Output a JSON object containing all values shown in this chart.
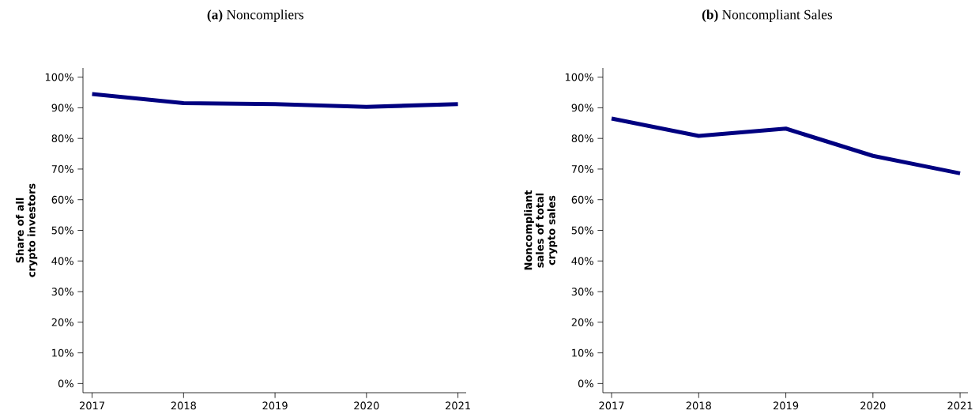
{
  "chart_data": [
    {
      "type": "line",
      "title": "**(a)** Noncompliers",
      "ylabel": "Share of all crypto investors",
      "x": [
        2017,
        2018,
        2019,
        2020,
        2021
      ],
      "xlim": [
        2016.9,
        2021.09
      ],
      "xticks": [
        2017,
        2018,
        2019,
        2020,
        2021
      ],
      "ylim": [
        -3,
        103
      ],
      "yticks": [
        {
          "value": 0,
          "label": "0%"
        },
        {
          "value": 10,
          "label": "10%"
        },
        {
          "value": 20,
          "label": "20%"
        },
        {
          "value": 30,
          "label": "30%"
        },
        {
          "value": 40,
          "label": "40%"
        },
        {
          "value": 50,
          "label": "50%"
        },
        {
          "value": 60,
          "label": "60%"
        },
        {
          "value": 70,
          "label": "70%"
        },
        {
          "value": 80,
          "label": "80%"
        },
        {
          "value": 90,
          "label": "90%"
        },
        {
          "value": 100,
          "label": "100%"
        }
      ],
      "series": [
        {
          "color": "#000080",
          "values": [
            94.5,
            91.5,
            91.2,
            90.3,
            91.2
          ]
        }
      ]
    },
    {
      "type": "line",
      "title": "**(b)** Noncompliant Sales",
      "ylabel": "Noncompliant sales of total crypto sales",
      "x": [
        2017,
        2018,
        2019,
        2020,
        2021
      ],
      "xlim": [
        2016.9,
        2021.09
      ],
      "xticks": [
        2017,
        2018,
        2019,
        2020,
        2021
      ],
      "ylim": [
        -3,
        103
      ],
      "yticks": [
        {
          "value": 0,
          "label": "0%"
        },
        {
          "value": 10,
          "label": "10%"
        },
        {
          "value": 20,
          "label": "20%"
        },
        {
          "value": 30,
          "label": "30%"
        },
        {
          "value": 40,
          "label": "40%"
        },
        {
          "value": 50,
          "label": "50%"
        },
        {
          "value": 60,
          "label": "60%"
        },
        {
          "value": 70,
          "label": "70%"
        },
        {
          "value": 80,
          "label": "80%"
        },
        {
          "value": 90,
          "label": "90%"
        },
        {
          "value": 100,
          "label": "100%"
        }
      ],
      "series": [
        {
          "color": "#000080",
          "values": [
            86.5,
            80.8,
            83.2,
            74.3,
            68.6
          ]
        }
      ]
    }
  ]
}
